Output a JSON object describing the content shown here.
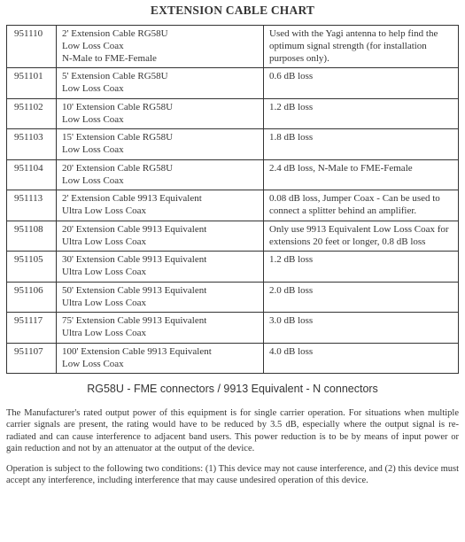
{
  "title": "EXTENSION CABLE CHART",
  "rows": [
    {
      "part": "951110",
      "desc1": "2' Extension Cable RG58U",
      "desc2": "Low Loss Coax",
      "desc3": "N-Male to FME-Female",
      "note": "Used with the Yagi antenna to help find the optimum signal strength (for installation purposes only)."
    },
    {
      "part": "951101",
      "desc1": "5' Extension Cable RG58U",
      "desc2": "Low Loss Coax",
      "desc3": "",
      "note": "0.6 dB loss"
    },
    {
      "part": "951102",
      "desc1": "10' Extension Cable RG58U",
      "desc2": "Low Loss Coax",
      "desc3": "",
      "note": "1.2 dB loss"
    },
    {
      "part": "951103",
      "desc1": "15' Extension Cable RG58U",
      "desc2": "Low Loss Coax",
      "desc3": "",
      "note": "1.8 dB loss"
    },
    {
      "part": "951104",
      "desc1": "20' Extension Cable RG58U",
      "desc2": "Low Loss Coax",
      "desc3": "",
      "note": "2.4 dB loss, N-Male to FME-Female"
    },
    {
      "part": "951113",
      "desc1": "2' Extension Cable 9913 Equivalent",
      "desc2": "Ultra Low Loss Coax",
      "desc3": "",
      "note": "0.08 dB loss, Jumper Coax - Can be used to connect a splitter behind an amplifier."
    },
    {
      "part": "951108",
      "desc1": "20' Extension Cable 9913 Equivalent",
      "desc2": "Ultra Low Loss Coax",
      "desc3": "",
      "note": "Only use 9913 Equivalent Low Loss Coax for extensions 20 feet or longer, 0.8 dB loss"
    },
    {
      "part": "951105",
      "desc1": "30' Extension Cable 9913 Equivalent",
      "desc2": "Ultra Low Loss Coax",
      "desc3": "",
      "note": "1.2 dB loss"
    },
    {
      "part": "951106",
      "desc1": "50' Extension Cable 9913 Equivalent",
      "desc2": "Ultra Low Loss Coax",
      "desc3": "",
      "note": "2.0 dB loss"
    },
    {
      "part": "951117",
      "desc1": "75' Extension Cable 9913 Equivalent",
      "desc2": "Ultra Low Loss Coax",
      "desc3": "",
      "note": "3.0 dB loss"
    },
    {
      "part": "951107",
      "desc1": "100' Extension Cable 9913 Equivalent",
      "desc2": "Low Loss Coax",
      "desc3": "",
      "note": "4.0 dB loss"
    }
  ],
  "connectors_note": "RG58U - FME connectors   /   9913 Equivalent - N connectors",
  "para1": "The Manufacturer's rated output power of this equipment is for single carrier operation. For situations when multiple carrier signals are present, the rating would have to be reduced by 3.5 dB, especially where the output signal is re-radiated and can cause interference to adjacent band users. This power reduction is to be by means of input power or gain reduction and not by an attenuator at the output of the device.",
  "para2": "Operation is subject to the following two conditions: (1) This device may not cause interference, and (2) this device must accept any interference, including interference that may cause undesired operation of this device."
}
